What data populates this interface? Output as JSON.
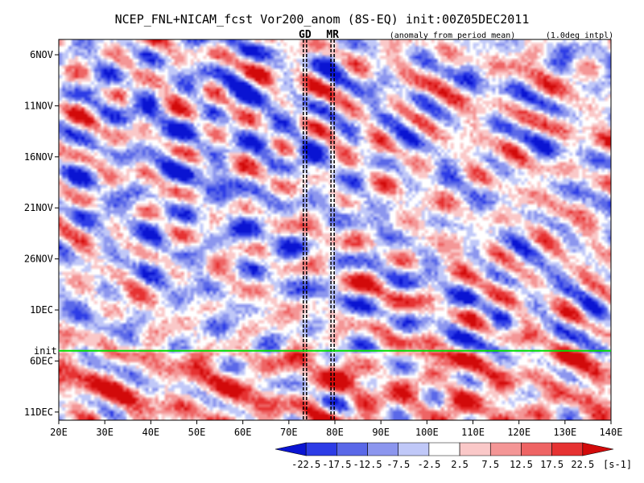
{
  "chart_data": {
    "type": "heatmap",
    "title": "NCEP_FNL+NICAM_fcst Vor200_anom (8S-EQ) init:00Z05DEC2011",
    "subtitle": "(anomaly from period mean)",
    "note": "(1.0deg intpl)",
    "x_ticks": [
      "20E",
      "30E",
      "40E",
      "50E",
      "60E",
      "70E",
      "80E",
      "90E",
      "100E",
      "110E",
      "120E",
      "130E",
      "140E"
    ],
    "x_tick_values": [
      20,
      30,
      40,
      50,
      60,
      70,
      80,
      90,
      100,
      110,
      120,
      130,
      140
    ],
    "xlim": [
      20,
      140
    ],
    "y_ticks": [
      "6NOV",
      "11NOV",
      "16NOV",
      "21NOV",
      "26NOV",
      "1DEC",
      "6DEC",
      "11DEC"
    ],
    "y_tick_values": [
      0,
      5,
      10,
      15,
      20,
      25,
      30,
      35
    ],
    "ylim": [
      -1.5,
      35.8
    ],
    "init_label": "init",
    "init_day": 29,
    "markers": [
      {
        "label": "GD",
        "lon": 73.5
      },
      {
        "label": "MR",
        "lon": 79.5
      }
    ],
    "colorbar": {
      "levels": [
        "-22.5",
        "-17.5",
        "-12.5",
        "-7.5",
        "-2.5",
        "2.5",
        "7.5",
        "12.5",
        "17.5",
        "22.5"
      ],
      "unit": "[s-1]",
      "colors": [
        "#0a14d2",
        "#2d3ce6",
        "#5a68e8",
        "#8c96ee",
        "#c0c8f8",
        "#ffffff",
        "#fac8c8",
        "#f49696",
        "#ee6464",
        "#e63232",
        "#d20a0a"
      ]
    }
  }
}
